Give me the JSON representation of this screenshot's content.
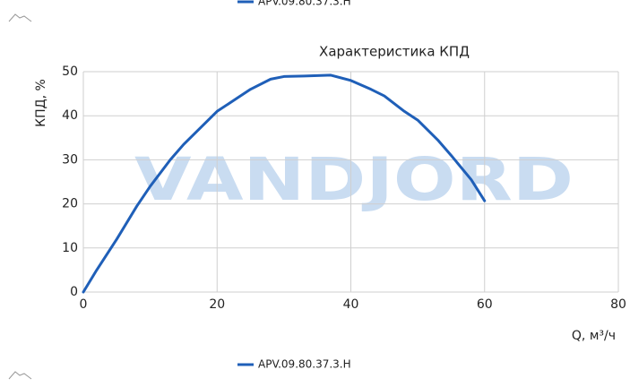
{
  "chart_data": {
    "type": "line",
    "title": "Характеристика КПД",
    "watermark": "VANDJORD",
    "x_label": "Q, м³/ч",
    "y_label": "КПД, %",
    "x": [
      0,
      2,
      5,
      8,
      10,
      13,
      15,
      18,
      20,
      23,
      25,
      28,
      30,
      33,
      37,
      40,
      43,
      45,
      48,
      50,
      53,
      55,
      58,
      60
    ],
    "series": [
      {
        "name": "APV.09.80.37.3.H",
        "color": "#1f5fb8",
        "values": [
          0,
          5,
          12,
          19.5,
          24,
          30,
          33.5,
          38,
          41,
          44,
          46,
          48.3,
          48.9,
          49,
          49.2,
          48,
          46,
          44.5,
          41,
          39,
          34.5,
          31,
          25.5,
          20.7
        ]
      }
    ],
    "xlim": [
      0,
      80
    ],
    "xticks": [
      0,
      20,
      40,
      60,
      80
    ],
    "ylim": [
      0,
      50
    ],
    "yticks": [
      0,
      10,
      20,
      30,
      40,
      50
    ],
    "grid": true
  }
}
